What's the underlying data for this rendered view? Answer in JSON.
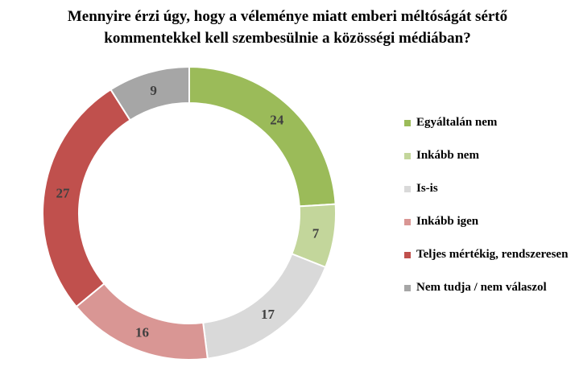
{
  "title": {
    "line1": "Mennyire érzi úgy, hogy a véleménye miatt emberi méltóságát sértő",
    "line2": "kommentekkel kell szembesülnie a közösségi médiában?"
  },
  "chart_data": {
    "type": "pie",
    "subtype": "donut",
    "title": "Mennyire érzi úgy, hogy a véleménye miatt emberi méltóságát sértő kommentekkel kell szembesülnie a közösségi médiában?",
    "units": "percent",
    "total": 100,
    "start_angle_deg": 0,
    "direction": "clockwise",
    "legend_position": "right",
    "label_color": "#404040",
    "separator_color": "#ffffff",
    "segments": [
      {
        "label": "Egyáltalán nem",
        "value": 24,
        "color": "#9bbb59"
      },
      {
        "label": "Inkább nem",
        "value": 7,
        "color": "#c3d69b"
      },
      {
        "label": "Is-is",
        "value": 17,
        "color": "#d9d9d9"
      },
      {
        "label": "Inkább igen",
        "value": 16,
        "color": "#d99694"
      },
      {
        "label": "Teljes mértékig, rendszeresen",
        "value": 27,
        "color": "#c0504d"
      },
      {
        "label": "Nem tudja / nem válaszol",
        "value": 9,
        "color": "#a6a6a6"
      }
    ]
  }
}
